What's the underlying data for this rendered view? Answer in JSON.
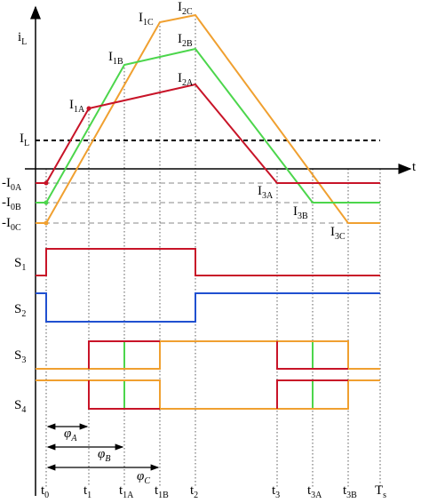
{
  "axis": {
    "y_label": {
      "text": "i",
      "sub": "L"
    },
    "x_label": {
      "text": "t",
      "sub": ""
    }
  },
  "level_labels": [
    {
      "text": "I",
      "sub": "L"
    },
    {
      "text": "-I",
      "sub": "0A"
    },
    {
      "text": "-I",
      "sub": "0B"
    },
    {
      "text": "-I",
      "sub": "0C"
    }
  ],
  "current_labels": [
    {
      "text": "I",
      "sub": "1A"
    },
    {
      "text": "I",
      "sub": "1B"
    },
    {
      "text": "I",
      "sub": "1C"
    },
    {
      "text": "I",
      "sub": "2A"
    },
    {
      "text": "I",
      "sub": "2B"
    },
    {
      "text": "I",
      "sub": "2C"
    },
    {
      "text": "I",
      "sub": "3A"
    },
    {
      "text": "I",
      "sub": "3B"
    },
    {
      "text": "I",
      "sub": "3C"
    }
  ],
  "switch_labels": [
    {
      "text": "S",
      "sub": "1"
    },
    {
      "text": "S",
      "sub": "2"
    },
    {
      "text": "S",
      "sub": "3"
    },
    {
      "text": "S",
      "sub": "4"
    }
  ],
  "phase_labels": [
    {
      "text": "φ",
      "sub": "A"
    },
    {
      "text": "φ",
      "sub": "B"
    },
    {
      "text": "φ",
      "sub": "C"
    }
  ],
  "time_labels": [
    {
      "text": "t",
      "sub": "0"
    },
    {
      "text": "t",
      "sub": "1"
    },
    {
      "text": "t",
      "sub": "1A"
    },
    {
      "text": "t",
      "sub": "1B"
    },
    {
      "text": "t",
      "sub": "2"
    },
    {
      "text": "t",
      "sub": "3"
    },
    {
      "text": "t",
      "sub": "3A"
    },
    {
      "text": "t",
      "sub": "3B"
    },
    {
      "text": "T",
      "sub": "s"
    }
  ]
}
